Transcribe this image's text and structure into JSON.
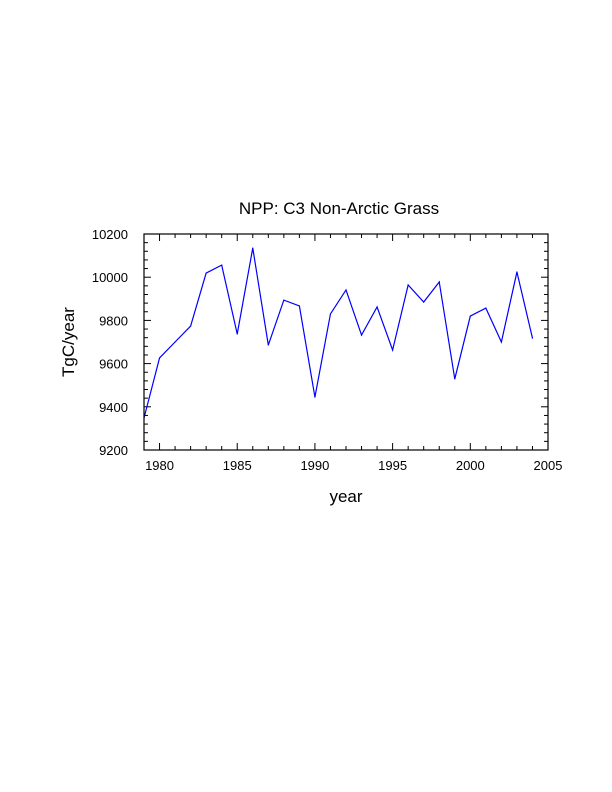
{
  "chart_data": {
    "type": "line",
    "title": "NPP: C3 Non-Arctic Grass",
    "xlabel": "year",
    "ylabel": "TgC/year",
    "xlim": [
      1979,
      2005
    ],
    "ylim": [
      9200,
      10200
    ],
    "xticks": [
      1980,
      1985,
      1990,
      1995,
      2000,
      2005
    ],
    "yticks": [
      9200,
      9400,
      9600,
      9800,
      10000,
      10200
    ],
    "grid": false,
    "series": [
      {
        "name": "NPP",
        "color": "#0000ff",
        "x": [
          1979,
          1980,
          1981,
          1982,
          1983,
          1984,
          1985,
          1986,
          1987,
          1988,
          1989,
          1990,
          1991,
          1992,
          1993,
          1994,
          1995,
          1996,
          1997,
          1998,
          1999,
          2000,
          2001,
          2002,
          2003,
          2004
        ],
        "values": [
          9348,
          9626,
          9700,
          9774,
          10019,
          10056,
          9737,
          10135,
          9686,
          9894,
          9867,
          9445,
          9830,
          9941,
          9732,
          9862,
          9663,
          9964,
          9885,
          9978,
          9529,
          9820,
          9857,
          9700,
          10024,
          9718
        ]
      }
    ]
  }
}
